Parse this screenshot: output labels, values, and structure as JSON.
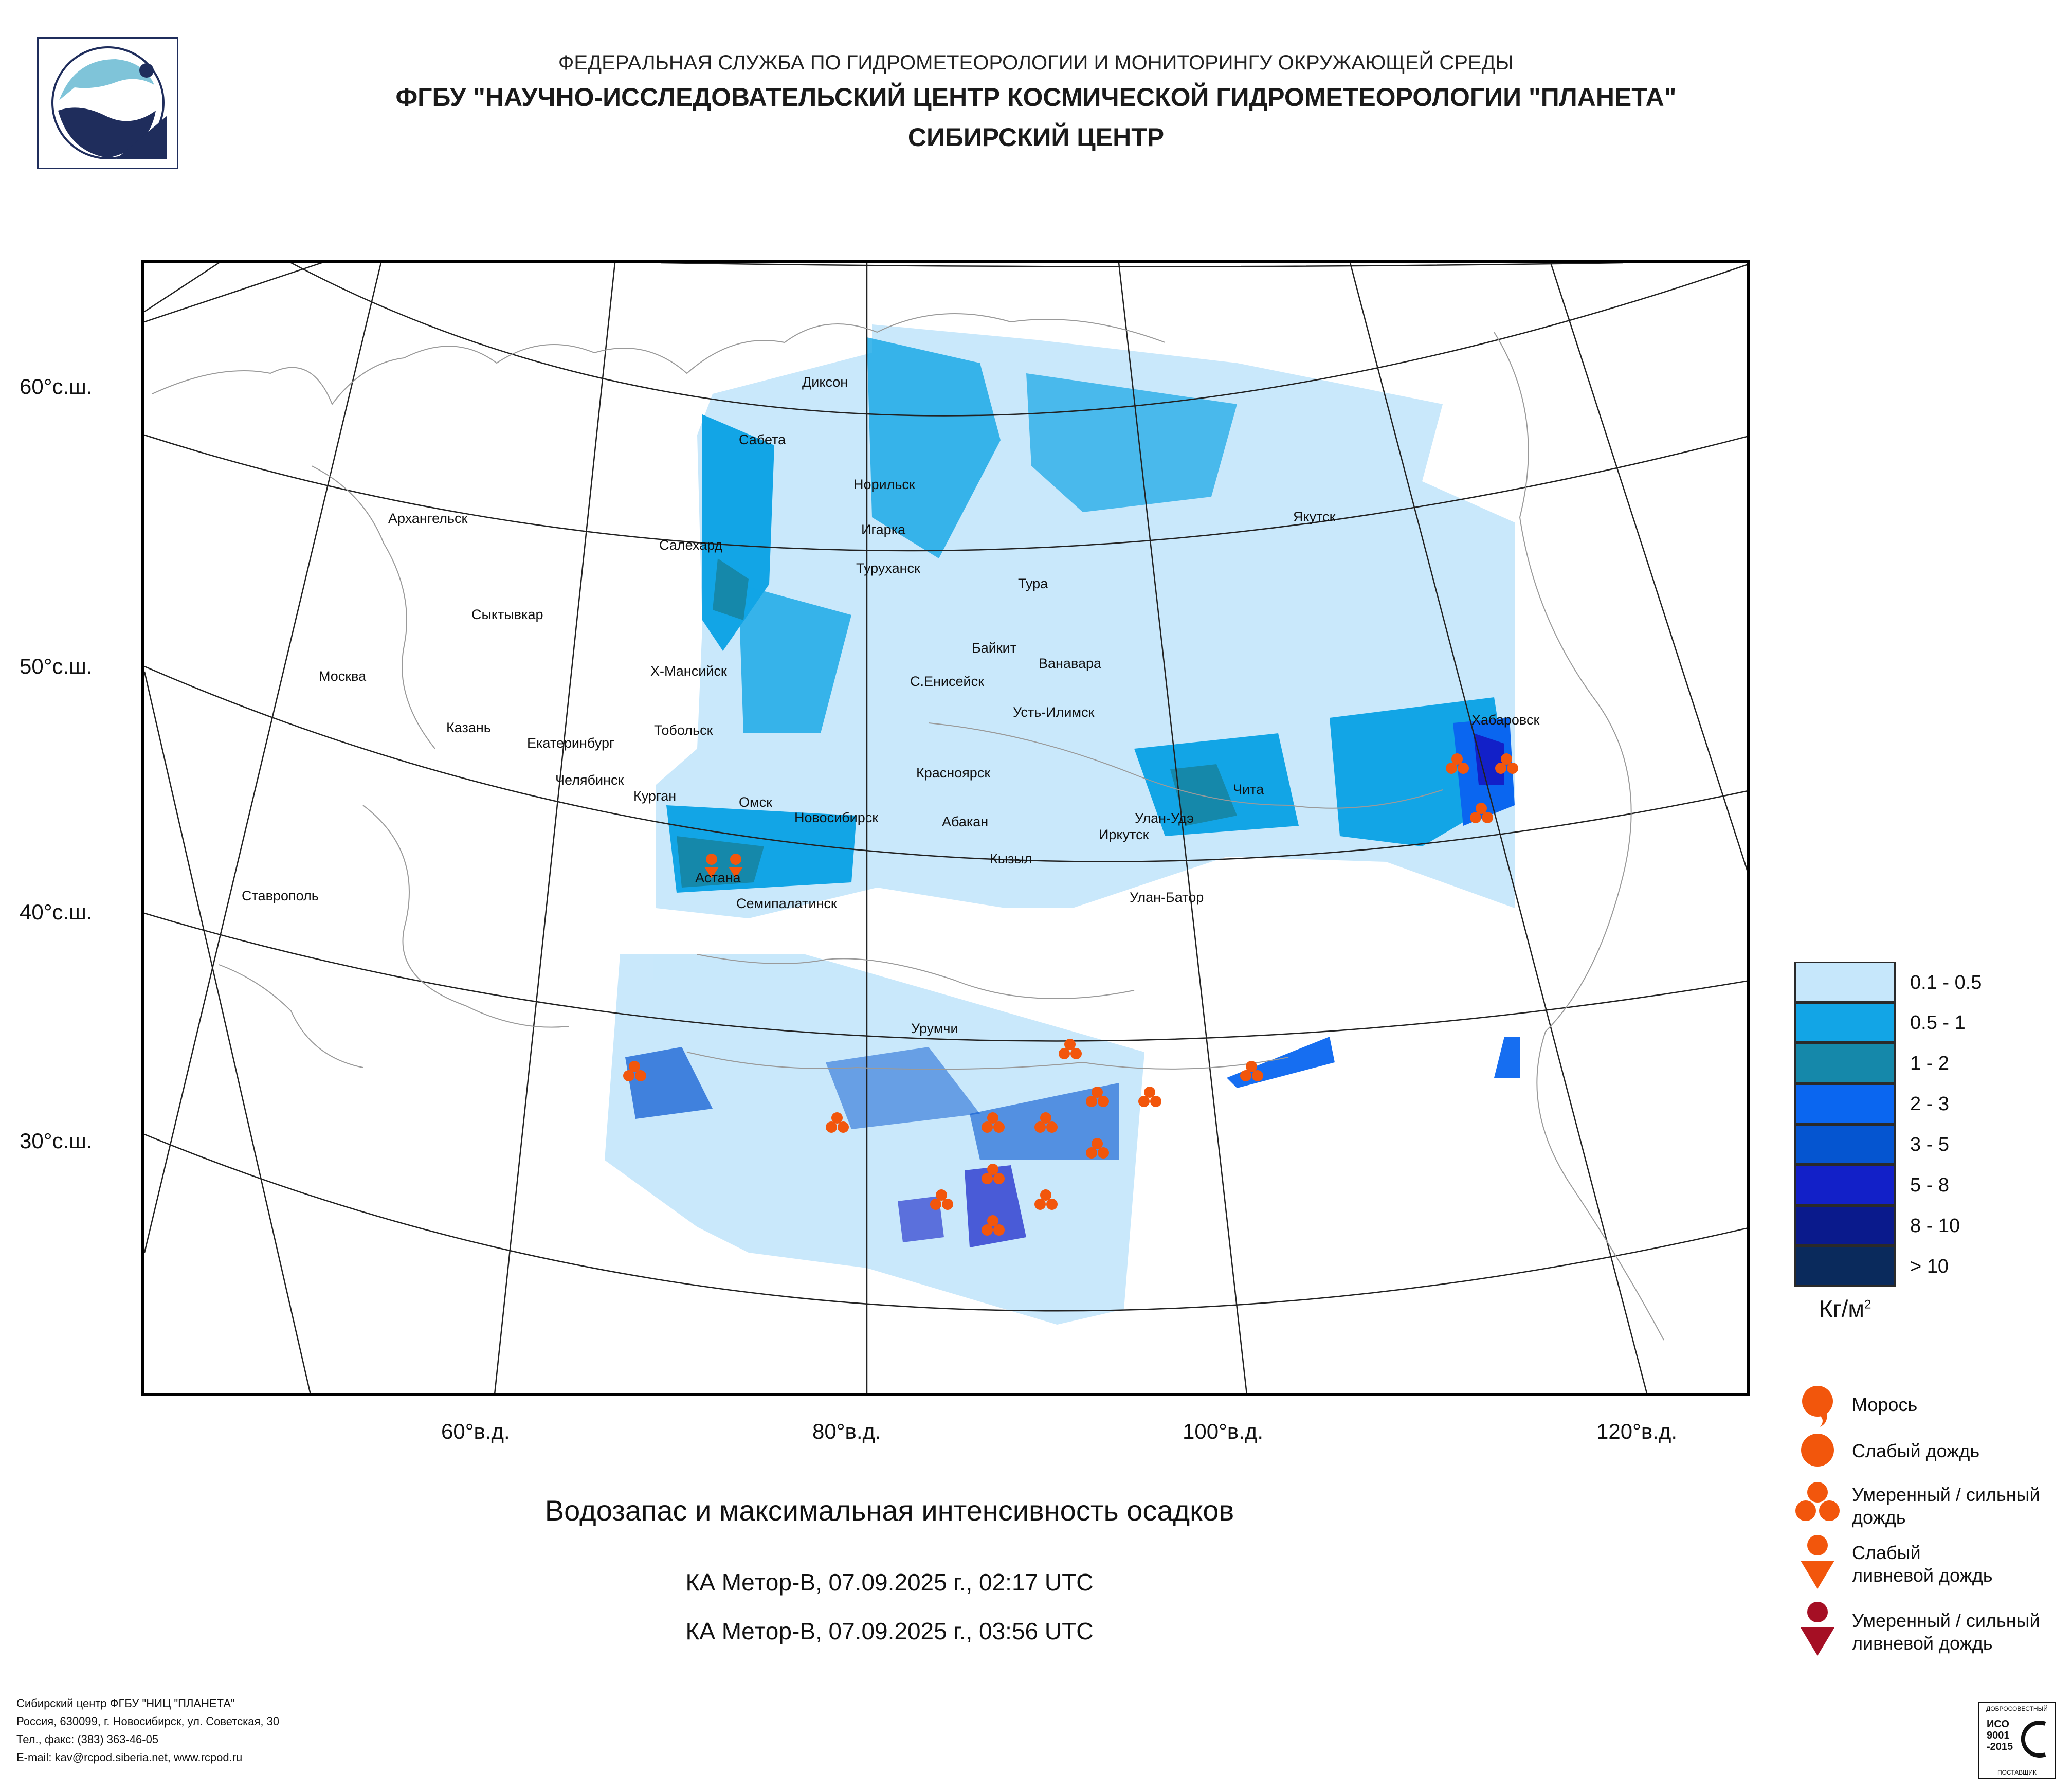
{
  "header": {
    "line1": "ФЕДЕРАЛЬНАЯ СЛУЖБА ПО ГИДРОМЕТЕОРОЛОГИИ И МОНИТОРИНГУ ОКРУЖАЮЩЕЙ СРЕДЫ",
    "line2": "ФГБУ \"НАУЧНО-ИССЛЕДОВАТЕЛЬСКИЙ ЦЕНТР КОСМИЧЕСКОЙ ГИДРОМЕТЕОРОЛОГИИ \"ПЛАНЕТА\"",
    "line3": "СИБИРСКИЙ ЦЕНТР"
  },
  "map": {
    "lat_labels": [
      "60°с.ш.",
      "50°с.ш.",
      "40°с.ш.",
      "30°с.ш."
    ],
    "lon_labels": [
      "60°в.д.",
      "80°в.д.",
      "100°в.д.",
      "120°в.д."
    ],
    "cities": [
      {
        "name": "Диксон"
      },
      {
        "name": "Сабета"
      },
      {
        "name": "Норильск"
      },
      {
        "name": "Игарка"
      },
      {
        "name": "Салехард"
      },
      {
        "name": "Туруханск"
      },
      {
        "name": "Тура"
      },
      {
        "name": "Якутск"
      },
      {
        "name": "Архангельск"
      },
      {
        "name": "Сыктывкар"
      },
      {
        "name": "Москва"
      },
      {
        "name": "Х-Мансийск"
      },
      {
        "name": "Байкит"
      },
      {
        "name": "Ванавара"
      },
      {
        "name": "С.Енисейск"
      },
      {
        "name": "Усть-Илимск"
      },
      {
        "name": "Казань"
      },
      {
        "name": "Екатеринбург"
      },
      {
        "name": "Тобольск"
      },
      {
        "name": "Хабаровск"
      },
      {
        "name": "Челябинск"
      },
      {
        "name": "Курган"
      },
      {
        "name": "Омск"
      },
      {
        "name": "Новосибирск"
      },
      {
        "name": "Красноярск"
      },
      {
        "name": "Абакан"
      },
      {
        "name": "Чита"
      },
      {
        "name": "Улан-Удэ"
      },
      {
        "name": "Иркутск"
      },
      {
        "name": "Кызыл"
      },
      {
        "name": "Астана"
      },
      {
        "name": "Семипалатинск"
      },
      {
        "name": "Улан-Батор"
      },
      {
        "name": "Ставрополь"
      },
      {
        "name": "Урумчи"
      }
    ]
  },
  "legend": {
    "classes": [
      {
        "label": "0.1 - 0.5",
        "color": "#c6e7fb"
      },
      {
        "label": "0.5 - 1",
        "color": "#12a5e6"
      },
      {
        "label": "1 - 2",
        "color": "#1588aa"
      },
      {
        "label": "2 - 3",
        "color": "#0a66f0"
      },
      {
        "label": "3 - 5",
        "color": "#0555d0"
      },
      {
        "label": "5 - 8",
        "color": "#1220c8"
      },
      {
        "label": "8 - 10",
        "color": "#0a1a8c"
      },
      {
        "label": "> 10",
        "color": "#0a2a5c"
      }
    ],
    "units": "Кг/м",
    "units_sup": "2",
    "symbols": [
      {
        "label": "Морось",
        "color": "#f2560c"
      },
      {
        "label": "Слабый дождь",
        "color": "#f2560c"
      },
      {
        "label": "Умеренный / сильный дождь",
        "color": "#f2560c"
      },
      {
        "label": "Слабый ливневой дождь",
        "color": "#f2560c"
      },
      {
        "label": "Умеренный / сильный ливневой дождь",
        "color": "#a50f24"
      }
    ]
  },
  "caption": "Водозапас и максимальная интенсивность осадков",
  "passes": [
    "КА Meтop-B, 07.09.2025 г., 02:17 UTC",
    "КА Meтop-B, 07.09.2025 г., 03:56 UTC"
  ],
  "footer": [
    "Сибирский центр ФГБУ \"НИЦ \"ПЛАНЕТА\"",
    "Россия, 630099, г. Новосибирск, ул. Советская, 30",
    "Тел., факс: (383) 363-46-05",
    "E-mail: kav@rcpod.siberia.net, www.rcpod.ru"
  ],
  "iso_badge": {
    "top": "ДОБРОСОВЕСТНЫЙ",
    "lines": [
      "ИСО",
      "9001",
      "-2015"
    ],
    "bottom": "ПОСТАВЩИК"
  }
}
